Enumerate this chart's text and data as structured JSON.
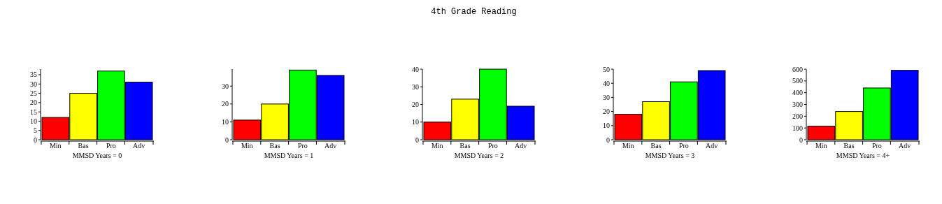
{
  "chart_data": [
    {
      "type": "bar",
      "xlabel": "MMSD Years = 0",
      "categories": [
        "Min",
        "Bas",
        "Pro",
        "Adv"
      ],
      "values": [
        12,
        25,
        37,
        31
      ],
      "colors": [
        "#ff0000",
        "#ffff00",
        "#00ff00",
        "#0000ff"
      ],
      "ylim": [
        0,
        38
      ],
      "yticks": [
        0,
        5,
        10,
        15,
        20,
        25,
        30,
        35
      ],
      "grid": false
    },
    {
      "type": "bar",
      "xlabel": "MMSD Years = 1",
      "categories": [
        "Min",
        "Bas",
        "Pro",
        "Adv"
      ],
      "values": [
        11,
        20,
        39,
        36
      ],
      "colors": [
        "#ff0000",
        "#ffff00",
        "#00ff00",
        "#0000ff"
      ],
      "ylim": [
        0,
        39.5
      ],
      "yticks": [
        0,
        10,
        20,
        30
      ],
      "grid": false
    },
    {
      "type": "bar",
      "title": "4th Grade Reading",
      "xlabel": "MMSD Years = 2",
      "categories": [
        "Min",
        "Bas",
        "Pro",
        "Adv"
      ],
      "values": [
        10,
        23,
        40,
        19
      ],
      "colors": [
        "#ff0000",
        "#ffff00",
        "#00ff00",
        "#0000ff"
      ],
      "ylim": [
        0,
        40
      ],
      "yticks": [
        0,
        10,
        20,
        30,
        40
      ],
      "grid": false
    },
    {
      "type": "bar",
      "xlabel": "MMSD Years = 3",
      "categories": [
        "Min",
        "Bas",
        "Pro",
        "Adv"
      ],
      "values": [
        18,
        27,
        41,
        49
      ],
      "colors": [
        "#ff0000",
        "#ffff00",
        "#00ff00",
        "#0000ff"
      ],
      "ylim": [
        0,
        50
      ],
      "yticks": [
        0,
        10,
        20,
        30,
        40,
        50
      ],
      "grid": false
    },
    {
      "type": "bar",
      "xlabel": "MMSD Years = 4+",
      "categories": [
        "Min",
        "Bas",
        "Pro",
        "Adv"
      ],
      "values": [
        115,
        240,
        440,
        590
      ],
      "colors": [
        "#ff0000",
        "#ffff00",
        "#00ff00",
        "#0000ff"
      ],
      "ylim": [
        0,
        600
      ],
      "yticks": [
        0,
        100,
        200,
        300,
        400,
        500,
        600
      ],
      "grid": false
    }
  ]
}
